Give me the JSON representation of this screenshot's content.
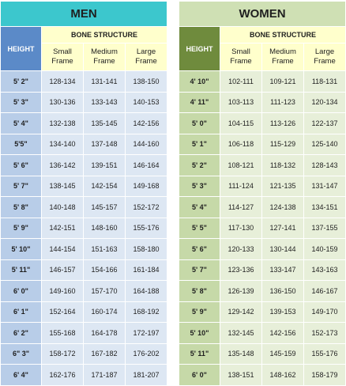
{
  "men": {
    "title": "MEN",
    "height_header": "HEIGHT",
    "bone_structure_header": "BONE STRUCTURE",
    "frames": [
      "Small Frame",
      "Medium Frame",
      "Large Frame"
    ],
    "rows": [
      {
        "height": "5' 2\"",
        "small": "128-134",
        "medium": "131-141",
        "large": "138-150"
      },
      {
        "height": "5' 3\"",
        "small": "130-136",
        "medium": "133-143",
        "large": "140-153"
      },
      {
        "height": "5' 4\"",
        "small": "132-138",
        "medium": "135-145",
        "large": "142-156"
      },
      {
        "height": "5'5\"",
        "small": "134-140",
        "medium": "137-148",
        "large": "144-160"
      },
      {
        "height": "5' 6\"",
        "small": "136-142",
        "medium": "139-151",
        "large": "146-164"
      },
      {
        "height": "5' 7\"",
        "small": "138-145",
        "medium": "142-154",
        "large": "149-168"
      },
      {
        "height": "5' 8\"",
        "small": "140-148",
        "medium": "145-157",
        "large": "152-172"
      },
      {
        "height": "5' 9\"",
        "small": "142-151",
        "medium": "148-160",
        "large": "155-176"
      },
      {
        "height": "5' 10\"",
        "small": "144-154",
        "medium": "151-163",
        "large": "158-180"
      },
      {
        "height": "5' 11\"",
        "small": "146-157",
        "medium": "154-166",
        "large": "161-184"
      },
      {
        "height": "6' 0\"",
        "small": "149-160",
        "medium": "157-170",
        "large": "164-188"
      },
      {
        "height": "6' 1\"",
        "small": "152-164",
        "medium": "160-174",
        "large": "168-192"
      },
      {
        "height": "6' 2\"",
        "small": "155-168",
        "medium": "164-178",
        "large": "172-197"
      },
      {
        "height": "6\" 3\"",
        "small": "158-172",
        "medium": "167-182",
        "large": "176-202"
      },
      {
        "height": "6' 4\"",
        "small": "162-176",
        "medium": "171-187",
        "large": "181-207"
      }
    ]
  },
  "women": {
    "title": "WOMEN",
    "height_header": "HEIGHT",
    "bone_structure_header": "BONE STRUCTURE",
    "frames": [
      "Small Frame",
      "Medium Frame",
      "Large Frame"
    ],
    "rows": [
      {
        "height": "4' 10\"",
        "small": "102-111",
        "medium": "109-121",
        "large": "118-131"
      },
      {
        "height": "4' 11\"",
        "small": "103-113",
        "medium": "111-123",
        "large": "120-134"
      },
      {
        "height": "5' 0\"",
        "small": "104-115",
        "medium": "113-126",
        "large": "122-137"
      },
      {
        "height": "5' 1\"",
        "small": "106-118",
        "medium": "115-129",
        "large": "125-140"
      },
      {
        "height": "5' 2\"",
        "small": "108-121",
        "medium": "118-132",
        "large": "128-143"
      },
      {
        "height": "5' 3\"",
        "small": "111-124",
        "medium": "121-135",
        "large": "131-147"
      },
      {
        "height": "5' 4\"",
        "small": "114-127",
        "medium": "124-138",
        "large": "134-151"
      },
      {
        "height": "5' 5\"",
        "small": "117-130",
        "medium": "127-141",
        "large": "137-155"
      },
      {
        "height": "5' 6\"",
        "small": "120-133",
        "medium": "130-144",
        "large": "140-159"
      },
      {
        "height": "5' 7\"",
        "small": "123-136",
        "medium": "133-147",
        "large": "143-163"
      },
      {
        "height": "5' 8\"",
        "small": "126-139",
        "medium": "136-150",
        "large": "146-167"
      },
      {
        "height": "5' 9\"",
        "small": "129-142",
        "medium": "139-153",
        "large": "149-170"
      },
      {
        "height": "5' 10\"",
        "small": "132-145",
        "medium": "142-156",
        "large": "152-173"
      },
      {
        "height": "5' 11\"",
        "small": "135-148",
        "medium": "145-159",
        "large": "155-176"
      },
      {
        "height": "6' 0\"",
        "small": "138-151",
        "medium": "148-162",
        "large": "158-179"
      }
    ]
  }
}
